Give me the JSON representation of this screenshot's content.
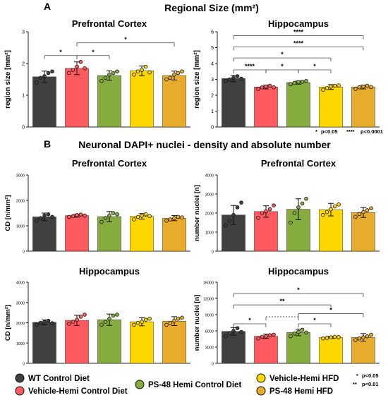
{
  "panel_a": {
    "letter": "A",
    "title": "Regional Size (mm²)",
    "legend_note": {
      "single": "*",
      "single_text": "p<0.05",
      "quad": "****",
      "quad_text": "p<0.0001"
    }
  },
  "panel_b": {
    "letter": "B",
    "title": "Neuronal DAPI+ nuclei - density and absolute number",
    "notes": [
      {
        "stars": "*",
        "text": "p<0.05"
      },
      {
        "stars": "**",
        "text": "p<0.01"
      }
    ]
  },
  "legend": [
    {
      "label": "WT Control Diet",
      "color": "#404040"
    },
    {
      "label": "Vehicle-Hemi Control Diet",
      "color": "#ff5a5f"
    },
    {
      "label": "PS-48 Hemi Control Diet",
      "color": "#86ab3e"
    },
    {
      "label": "Vehicle-Hemi HFD",
      "color": "#ffd700"
    },
    {
      "label": "PS-48 Hemi HFD",
      "color": "#e8ac2c"
    }
  ],
  "chart_data": [
    {
      "type": "bar",
      "title": "Prefrontal Cortex",
      "ylabel": "region size [mm²]",
      "ylim": [
        0,
        3
      ],
      "yticks": [
        0,
        1,
        2,
        3
      ],
      "categories": [
        "WT Control Diet",
        "Vehicle-Hemi Control Diet",
        "PS-48 Hemi Control Diet",
        "Vehicle-Hemi HFD",
        "PS-48 Hemi HFD"
      ],
      "values": [
        1.58,
        1.85,
        1.62,
        1.77,
        1.62
      ],
      "errors": [
        0.18,
        0.2,
        0.15,
        0.15,
        0.14
      ],
      "points": [
        [
          1.4,
          1.55,
          1.6,
          1.7,
          1.75
        ],
        [
          1.7,
          1.8,
          1.9,
          2.05,
          1.85
        ],
        [
          1.45,
          1.55,
          1.65,
          1.7,
          1.75
        ],
        [
          1.65,
          1.75,
          1.8,
          1.9,
          1.72
        ],
        [
          1.5,
          1.55,
          1.65,
          1.7,
          1.75
        ]
      ],
      "significance": [
        {
          "from": 0,
          "to": 1,
          "label": "*",
          "level": 2.25
        },
        {
          "from": 1,
          "to": 2,
          "label": "*",
          "level": 2.25
        },
        {
          "from": 1,
          "to": 4,
          "label": "*",
          "level": 2.65
        }
      ]
    },
    {
      "type": "bar",
      "title": "Hippocampus",
      "ylabel": "region size [mm²]",
      "ylim": [
        0,
        6
      ],
      "yticks": [
        0,
        1,
        2,
        3,
        4,
        5,
        6
      ],
      "categories": [
        "WT Control Diet",
        "Vehicle-Hemi Control Diet",
        "PS-48 Hemi Control Diet",
        "Vehicle-Hemi HFD",
        "PS-48 Hemi HFD"
      ],
      "values": [
        3.05,
        2.52,
        2.8,
        2.52,
        2.52
      ],
      "errors": [
        0.2,
        0.12,
        0.1,
        0.15,
        0.12
      ],
      "points": [
        [
          2.9,
          3.0,
          3.1,
          3.2,
          3.05
        ],
        [
          2.4,
          2.5,
          2.55,
          2.6,
          2.5
        ],
        [
          2.7,
          2.78,
          2.82,
          2.85,
          2.9
        ],
        [
          2.35,
          2.45,
          2.55,
          2.6,
          2.62
        ],
        [
          2.4,
          2.5,
          2.55,
          2.6,
          2.52
        ]
      ],
      "significance": [
        {
          "from": 0,
          "to": 1,
          "label": "****",
          "level": 3.6
        },
        {
          "from": 1,
          "to": 2,
          "label": "*",
          "level": 3.6
        },
        {
          "from": 2,
          "to": 3,
          "label": "*",
          "level": 3.6
        },
        {
          "from": 0,
          "to": 3,
          "label": "*",
          "level": 4.35
        },
        {
          "from": 0,
          "to": 4,
          "label": "****",
          "level": 5.05
        },
        {
          "from": 0,
          "to": 4,
          "label": "****",
          "level": 5.75
        }
      ]
    },
    {
      "type": "bar",
      "title": "Prefrontal Cortex",
      "ylabel": "CD [n/mm²]",
      "ylim": [
        0,
        3000
      ],
      "yticks": [
        0,
        1000,
        2000,
        3000
      ],
      "categories": [
        "WT Control Diet",
        "Vehicle-Hemi Control Diet",
        "PS-48 Hemi Control Diet",
        "Vehicle-Hemi HFD",
        "PS-48 Hemi HFD"
      ],
      "values": [
        1350,
        1400,
        1360,
        1370,
        1300
      ],
      "errors": [
        150,
        60,
        200,
        110,
        100
      ],
      "points": [
        [
          1200,
          1300,
          1400,
          1450,
          1350
        ],
        [
          1350,
          1380,
          1420,
          1440,
          1400
        ],
        [
          1150,
          1300,
          1400,
          1500,
          1450
        ],
        [
          1250,
          1350,
          1400,
          1450,
          1380
        ],
        [
          1200,
          1250,
          1300,
          1350,
          1330
        ]
      ],
      "significance": []
    },
    {
      "type": "bar",
      "title": "Prefrontal Cortex",
      "ylabel": "number nuclei [n]",
      "ylim": [
        0,
        4000
      ],
      "yticks": [
        0,
        1000,
        2000,
        3000,
        4000
      ],
      "categories": [
        "WT Control Diet",
        "Vehicle-Hemi Control Diet",
        "PS-48 Hemi Control Diet",
        "Vehicle-Hemi HFD",
        "PS-48 Hemi HFD"
      ],
      "values": [
        1900,
        2080,
        2200,
        2180,
        2030
      ],
      "errors": [
        500,
        300,
        550,
        330,
        260
      ],
      "points": [
        [
          1350,
          1600,
          1900,
          2300,
          2550
        ],
        [
          1750,
          2000,
          2100,
          2200,
          2400
        ],
        [
          1500,
          2000,
          2300,
          2500,
          2750
        ],
        [
          1900,
          2050,
          2200,
          2350,
          2450
        ],
        [
          1800,
          1950,
          2050,
          2150,
          2250
        ]
      ],
      "significance": []
    },
    {
      "type": "bar",
      "title": "Hippocampus",
      "ylabel": "CD [n/mm²]",
      "ylim": [
        0,
        4000
      ],
      "yticks": [
        0,
        1000,
        2000,
        3000,
        4000
      ],
      "categories": [
        "WT Control Diet",
        "Vehicle-Hemi Control Diet",
        "PS-48 Hemi Control Diet",
        "Vehicle-Hemi HFD",
        "PS-48 Hemi HFD"
      ],
      "values": [
        2020,
        2120,
        2150,
        2050,
        2080
      ],
      "errors": [
        120,
        250,
        280,
        200,
        220
      ],
      "points": [
        [
          1900,
          2000,
          2050,
          2100,
          1980
        ],
        [
          1950,
          2050,
          2150,
          2300,
          2400
        ],
        [
          1900,
          2050,
          2200,
          2350,
          2400
        ],
        [
          1900,
          2000,
          2050,
          2150,
          2200
        ],
        [
          1900,
          2000,
          2100,
          2200,
          2250
        ]
      ],
      "significance": []
    },
    {
      "type": "bar",
      "title": "Hippocampus",
      "ylabel": "number nuclei [n]",
      "ylim": [
        0,
        15000
      ],
      "yticks": [
        0,
        3000,
        6000,
        9000,
        12000,
        15000
      ],
      "categories": [
        "WT Control Diet",
        "Vehicle-Hemi Control Diet",
        "PS-48 Hemi Control Diet",
        "Vehicle-Hemi HFD",
        "PS-48 Hemi HFD"
      ],
      "values": [
        5900,
        5000,
        5700,
        4800,
        4800
      ],
      "errors": [
        700,
        400,
        600,
        200,
        700
      ],
      "points": [
        [
          5000,
          5600,
          6000,
          6500,
          5800
        ],
        [
          4600,
          4900,
          5000,
          5200,
          5300
        ],
        [
          5000,
          5500,
          5800,
          6200,
          5700
        ],
        [
          4600,
          4700,
          4800,
          4900,
          4850
        ],
        [
          4300,
          4600,
          4800,
          5000,
          5300
        ]
      ],
      "significance": [
        {
          "from": 0,
          "to": 1,
          "label": "*",
          "level": 7300
        },
        {
          "from": 1,
          "to": 2,
          "label": "",
          "level": 8600,
          "dashed": true
        },
        {
          "from": 2,
          "to": 3,
          "label": "*",
          "level": 7300
        },
        {
          "from": 2,
          "to": 4,
          "label": "*",
          "level": 9200
        },
        {
          "from": 0,
          "to": 3,
          "label": "**",
          "level": 10800
        },
        {
          "from": 0,
          "to": 4,
          "label": "*",
          "level": 12900
        }
      ]
    }
  ]
}
